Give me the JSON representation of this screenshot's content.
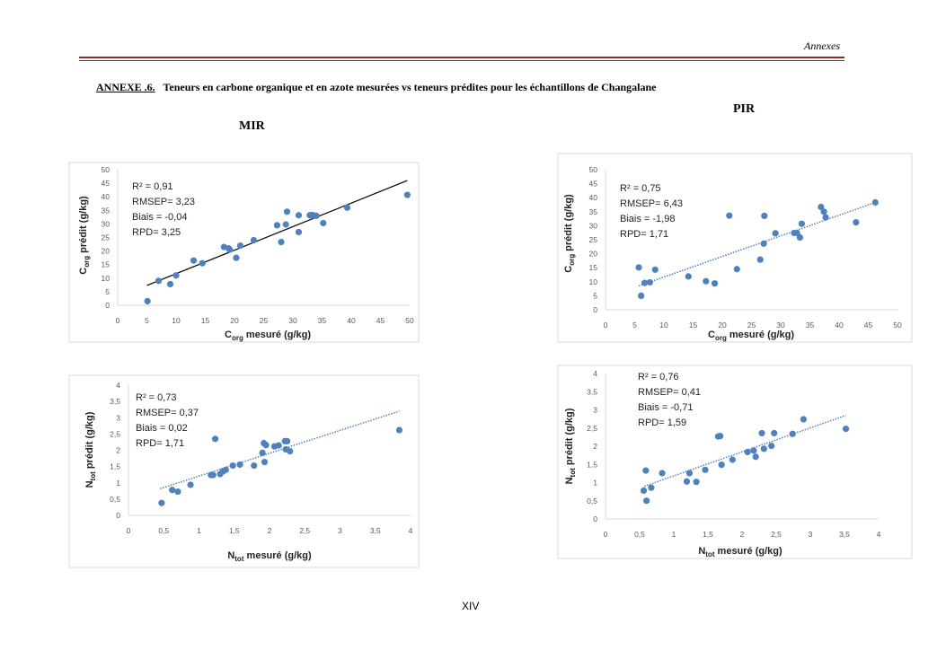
{
  "header": {
    "section": "Annexes"
  },
  "title": {
    "label": "ANNEXE .6.",
    "text": "Teneurs en carbone organique et en azote mesurées vs teneurs prédites pour  les échantillons de  Changalane"
  },
  "sections": {
    "left": "MIR",
    "right": "PIR"
  },
  "footer": {
    "page": "XIV"
  },
  "colors": {
    "marker": "#4f81bd",
    "trend_mir_c": "#000000",
    "trend_dotted": "#4f81bd",
    "rule": "#8b2a1f"
  },
  "chart_data": [
    {
      "type": "scatter",
      "panel": "MIR C",
      "xlabel": {
        "main": "C",
        "sub": "org",
        "rest": " mesuré (g/kg)"
      },
      "ylabel": {
        "main": "C",
        "sub": "org",
        "rest": " prédit (g/kg)"
      },
      "xlim": [
        0,
        50
      ],
      "ylim": [
        0,
        50
      ],
      "xticks": [
        "0",
        "5",
        "10",
        "15",
        "20",
        "25",
        "30",
        "35",
        "40",
        "45",
        "50"
      ],
      "yticks": [
        "0",
        "5",
        "10",
        "15",
        "20",
        "25",
        "30",
        "35",
        "40",
        "45",
        "50"
      ],
      "stats": [
        "R² = 0,91",
        "RMSEP= 3,23",
        "Biais = -0,04",
        "RPD= 3,25"
      ],
      "trendline": {
        "style": "solid",
        "points": [
          [
            5,
            7.3
          ],
          [
            49.6,
            46
          ]
        ]
      },
      "points": [
        [
          5.1,
          1.5
        ],
        [
          7,
          9
        ],
        [
          9,
          7.8
        ],
        [
          10,
          11
        ],
        [
          13,
          16.5
        ],
        [
          14.5,
          15.5
        ],
        [
          18.2,
          21.5
        ],
        [
          19,
          21
        ],
        [
          19.2,
          20.5
        ],
        [
          20.3,
          17.5
        ],
        [
          21,
          22
        ],
        [
          23.3,
          24
        ],
        [
          27.3,
          29.5
        ],
        [
          28,
          23.3
        ],
        [
          28.8,
          29.8
        ],
        [
          29,
          34.5
        ],
        [
          31,
          27
        ],
        [
          31,
          33.2
        ],
        [
          32.9,
          33.2
        ],
        [
          33.2,
          33.3
        ],
        [
          33.5,
          33.2
        ],
        [
          34,
          33
        ],
        [
          35.2,
          30.3
        ],
        [
          39.3,
          36
        ],
        [
          49.6,
          40.7
        ]
      ]
    },
    {
      "type": "scatter",
      "panel": "PIR C",
      "xlabel": {
        "main": "C",
        "sub": "org",
        "rest": " mesuré (g/kg)"
      },
      "ylabel": {
        "main": "C",
        "sub": "org",
        "rest": " prédit (g/kg)"
      },
      "xlim": [
        0,
        50
      ],
      "ylim": [
        0,
        50
      ],
      "xticks": [
        "0",
        "5",
        "10",
        "15",
        "20",
        "25",
        "30",
        "35",
        "40",
        "45",
        "50"
      ],
      "yticks": [
        "0",
        "5",
        "10",
        "15",
        "20",
        "25",
        "30",
        "35",
        "40",
        "45",
        "50"
      ],
      "stats": [
        "R² = 0,75",
        "RMSEP= 6,43",
        "Biais = -1,98",
        "RPD= 1,71"
      ],
      "trendline": {
        "style": "dotted",
        "points": [
          [
            5.7,
            8.5
          ],
          [
            46.2,
            38.3
          ]
        ]
      },
      "points": [
        [
          5.7,
          15.1
        ],
        [
          6.1,
          5
        ],
        [
          6.7,
          9.6
        ],
        [
          7.6,
          9.8
        ],
        [
          8.5,
          14.3
        ],
        [
          14.2,
          11.9
        ],
        [
          17.2,
          10.2
        ],
        [
          18.7,
          9.4
        ],
        [
          21.2,
          33.6
        ],
        [
          22.5,
          14.5
        ],
        [
          26.5,
          17.9
        ],
        [
          27.1,
          23.6
        ],
        [
          27.2,
          33.5
        ],
        [
          29.1,
          27.3
        ],
        [
          32.3,
          27.4
        ],
        [
          32.8,
          27.4
        ],
        [
          33.3,
          25.8
        ],
        [
          33.6,
          30.7
        ],
        [
          36.9,
          36.7
        ],
        [
          37.4,
          35
        ],
        [
          37.7,
          33
        ],
        [
          42.9,
          31.2
        ],
        [
          46.2,
          38.3
        ]
      ]
    },
    {
      "type": "scatter",
      "panel": "MIR N",
      "xlabel": {
        "main": "N",
        "sub": "tot",
        "rest": " mesuré (g/kg)"
      },
      "ylabel": {
        "main": "N",
        "sub": "tot",
        "rest": " prédit (g/kg)"
      },
      "xlim": [
        0,
        4
      ],
      "ylim": [
        0,
        4
      ],
      "xticks": [
        "0",
        "0,5",
        "1",
        "1,5",
        "2",
        "2,5",
        "3",
        "3,5",
        "4"
      ],
      "yticks": [
        "0",
        "0,5",
        "1",
        "1,5",
        "2",
        "2,5",
        "3",
        "3,5",
        "4"
      ],
      "stats": [
        "R² = 0,73",
        "RMSEP= 0,37",
        "Biais = 0,02",
        "RPD= 1,71"
      ],
      "trendline": {
        "style": "dotted",
        "points": [
          [
            0.45,
            0.82
          ],
          [
            3.84,
            3.2
          ]
        ]
      },
      "points": [
        [
          0.47,
          0.38
        ],
        [
          0.62,
          0.78
        ],
        [
          0.7,
          0.73
        ],
        [
          0.88,
          0.94
        ],
        [
          1.17,
          1.24
        ],
        [
          1.2,
          1.24
        ],
        [
          1.23,
          2.35
        ],
        [
          1.3,
          1.27
        ],
        [
          1.34,
          1.35
        ],
        [
          1.38,
          1.4
        ],
        [
          1.48,
          1.53
        ],
        [
          1.58,
          1.56
        ],
        [
          1.78,
          1.53
        ],
        [
          1.9,
          1.92
        ],
        [
          1.92,
          2.22
        ],
        [
          1.93,
          1.64
        ],
        [
          1.95,
          2.16
        ],
        [
          2.07,
          2.12
        ],
        [
          2.13,
          2.15
        ],
        [
          2.22,
          2.28
        ],
        [
          2.25,
          2.28
        ],
        [
          2.23,
          2.03
        ],
        [
          2.29,
          1.97
        ],
        [
          3.84,
          2.62
        ]
      ]
    },
    {
      "type": "scatter",
      "panel": "PIR N",
      "xlabel": {
        "main": "N",
        "sub": "tot",
        "rest": " mesuré (g/kg)"
      },
      "ylabel": {
        "main": "N",
        "sub": "tot",
        "rest": " prédit (g/kg)"
      },
      "xlim": [
        0,
        4
      ],
      "ylim": [
        0,
        4
      ],
      "xticks": [
        "0",
        "0,5",
        "1",
        "1,5",
        "2",
        "2,5",
        "3",
        "3,5",
        "4"
      ],
      "yticks": [
        "0",
        "0,5",
        "1",
        "1,5",
        "2",
        "2,5",
        "3",
        "3,5",
        "4"
      ],
      "stats": [
        "R² = 0,76",
        "RMSEP= 0,41",
        "Biais = -0,71",
        "RPD= 1,59"
      ],
      "trendline": {
        "style": "dotted",
        "points": [
          [
            0.57,
            0.9
          ],
          [
            3.52,
            2.85
          ]
        ]
      },
      "points": [
        [
          0.56,
          0.78
        ],
        [
          0.59,
          1.33
        ],
        [
          0.6,
          0.5
        ],
        [
          0.67,
          0.86
        ],
        [
          0.83,
          1.26
        ],
        [
          1.19,
          1.03
        ],
        [
          1.23,
          1.26
        ],
        [
          1.33,
          1.02
        ],
        [
          1.46,
          1.35
        ],
        [
          1.65,
          2.27
        ],
        [
          1.68,
          2.28
        ],
        [
          1.7,
          1.49
        ],
        [
          1.86,
          1.63
        ],
        [
          2.08,
          1.84
        ],
        [
          2.17,
          1.88
        ],
        [
          2.2,
          1.71
        ],
        [
          2.29,
          2.36
        ],
        [
          2.32,
          1.93
        ],
        [
          2.43,
          2.01
        ],
        [
          2.47,
          2.36
        ],
        [
          2.74,
          2.34
        ],
        [
          2.9,
          2.74
        ],
        [
          3.52,
          2.48
        ]
      ]
    }
  ]
}
